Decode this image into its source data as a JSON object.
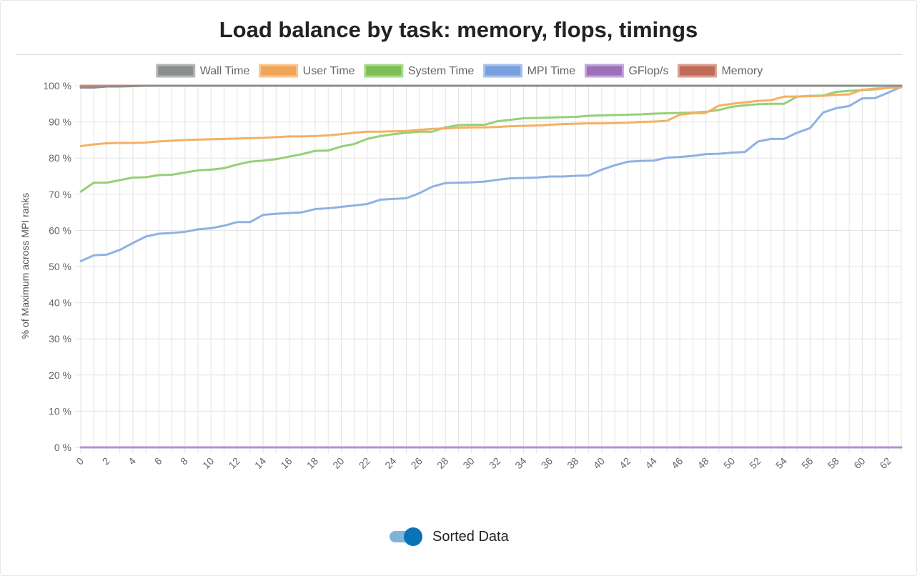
{
  "title": "Load balance by task: memory, flops, timings",
  "toggle": {
    "label": "Sorted Data",
    "checked": true
  },
  "chart_data": {
    "type": "line",
    "title": "Load balance by task: memory, flops, timings",
    "ylabel": "% of Maximum across MPI ranks",
    "xlabel": "",
    "xlim": [
      0,
      63
    ],
    "ylim": [
      0,
      100
    ],
    "yticks": [
      0,
      10,
      20,
      30,
      40,
      50,
      60,
      70,
      80,
      90,
      100
    ],
    "ytick_suffix": " %",
    "xticks": [
      0,
      2,
      4,
      6,
      8,
      10,
      12,
      14,
      16,
      18,
      20,
      22,
      24,
      26,
      28,
      30,
      32,
      34,
      36,
      38,
      40,
      42,
      44,
      46,
      48,
      50,
      52,
      54,
      56,
      58,
      60,
      62
    ],
    "grid": true,
    "legend_position": "top",
    "series": [
      {
        "name": "Wall Time",
        "color": "#8c8c8c",
        "legend_fill": "#8a8f8c",
        "legend_border": "#b5b5b5",
        "values": [
          99.5,
          99.5,
          99.8,
          99.8,
          99.9,
          100,
          100,
          100,
          100,
          100,
          100,
          100,
          100,
          100,
          100,
          100,
          100,
          100,
          100,
          100,
          100,
          100,
          100,
          100,
          100,
          100,
          100,
          100,
          100,
          100,
          100,
          100,
          100,
          100,
          100,
          100,
          100,
          100,
          100,
          100,
          100,
          100,
          100,
          100,
          100,
          100,
          100,
          100,
          100,
          100,
          100,
          100,
          100,
          100,
          100,
          100,
          100,
          100,
          100,
          100,
          100,
          100,
          100,
          100
        ]
      },
      {
        "name": "User Time",
        "color": "#f5b063",
        "legend_fill": "#f0a55a",
        "legend_border": "#f8c58c",
        "values": [
          83.3,
          83.8,
          84.1,
          84.2,
          84.2,
          84.3,
          84.6,
          84.8,
          85.0,
          85.1,
          85.2,
          85.3,
          85.4,
          85.5,
          85.6,
          85.8,
          86.0,
          86.0,
          86.1,
          86.3,
          86.6,
          87.0,
          87.3,
          87.3,
          87.4,
          87.5,
          87.8,
          88.1,
          88.2,
          88.4,
          88.5,
          88.5,
          88.6,
          88.8,
          88.9,
          89.0,
          89.2,
          89.4,
          89.5,
          89.6,
          89.6,
          89.7,
          89.8,
          90.0,
          90.1,
          90.3,
          92.0,
          92.4,
          92.5,
          94.5,
          95.0,
          95.4,
          95.8,
          96.0,
          97.0,
          97.0,
          97.1,
          97.2,
          97.5,
          97.6,
          98.9,
          99.2,
          99.4,
          99.6
        ]
      },
      {
        "name": "System Time",
        "color": "#96d077",
        "legend_fill": "#7cbf55",
        "legend_border": "#a9d98e",
        "values": [
          70.7,
          73.2,
          73.2,
          73.9,
          74.6,
          74.7,
          75.3,
          75.4,
          76.0,
          76.6,
          76.8,
          77.2,
          78.2,
          79.0,
          79.3,
          79.7,
          80.4,
          81.1,
          82.0,
          82.1,
          83.2,
          83.9,
          85.3,
          86.1,
          86.6,
          87.0,
          87.3,
          87.3,
          88.5,
          89.1,
          89.2,
          89.2,
          90.2,
          90.6,
          91.0,
          91.1,
          91.2,
          91.3,
          91.4,
          91.7,
          91.8,
          91.9,
          92.0,
          92.1,
          92.3,
          92.4,
          92.5,
          92.6,
          92.8,
          93.3,
          94.2,
          94.6,
          94.9,
          95.0,
          95.0,
          97.0,
          97.2,
          97.3,
          98.3,
          98.6,
          98.8,
          99.0,
          99.4,
          99.7
        ]
      },
      {
        "name": "MPI Time",
        "color": "#8fb1e4",
        "legend_fill": "#7a9fde",
        "legend_border": "#a9c2ec",
        "values": [
          51.5,
          53.1,
          53.3,
          54.6,
          56.5,
          58.3,
          59.1,
          59.3,
          59.6,
          60.3,
          60.6,
          61.3,
          62.3,
          62.3,
          64.3,
          64.6,
          64.8,
          65.0,
          65.9,
          66.1,
          66.5,
          66.9,
          67.3,
          68.5,
          68.7,
          68.9,
          70.3,
          72.1,
          73.1,
          73.2,
          73.3,
          73.5,
          74.0,
          74.4,
          74.5,
          74.6,
          74.9,
          74.9,
          75.1,
          75.2,
          76.8,
          78.0,
          79.0,
          79.2,
          79.3,
          80.1,
          80.3,
          80.6,
          81.1,
          81.2,
          81.5,
          81.7,
          84.6,
          85.3,
          85.3,
          87.0,
          88.3,
          92.6,
          93.8,
          94.4,
          96.5,
          96.6,
          98.1,
          99.7
        ]
      },
      {
        "name": "GFlop/s",
        "color": "#b291cf",
        "legend_fill": "#9c70b8",
        "legend_border": "#c3a4da",
        "values": [
          0,
          0,
          0,
          0,
          0,
          0,
          0,
          0,
          0,
          0,
          0,
          0,
          0,
          0,
          0,
          0,
          0,
          0,
          0,
          0,
          0,
          0,
          0,
          0,
          0,
          0,
          0,
          0,
          0,
          0,
          0,
          0,
          0,
          0,
          0,
          0,
          0,
          0,
          0,
          0,
          0,
          0,
          0,
          0,
          0,
          0,
          0,
          0,
          0,
          0,
          0,
          0,
          0,
          0,
          0,
          0,
          0,
          0,
          0,
          0,
          0,
          0,
          0,
          0
        ]
      },
      {
        "name": "Memory",
        "color": "#d48876",
        "legend_fill": "#bf6b58",
        "legend_border": "#d9a093",
        "values": [
          100,
          100,
          100,
          100,
          100,
          100,
          100,
          100,
          100,
          100,
          100,
          100,
          100,
          100,
          100,
          100,
          100,
          100,
          100,
          100,
          100,
          100,
          100,
          100,
          100,
          100,
          100,
          100,
          100,
          100,
          100,
          100,
          100,
          100,
          100,
          100,
          100,
          100,
          100,
          100,
          100,
          100,
          100,
          100,
          100,
          100,
          100,
          100,
          100,
          100,
          100,
          100,
          100,
          100,
          100,
          100,
          100,
          100,
          100,
          100,
          100,
          100,
          100,
          100
        ]
      }
    ]
  }
}
